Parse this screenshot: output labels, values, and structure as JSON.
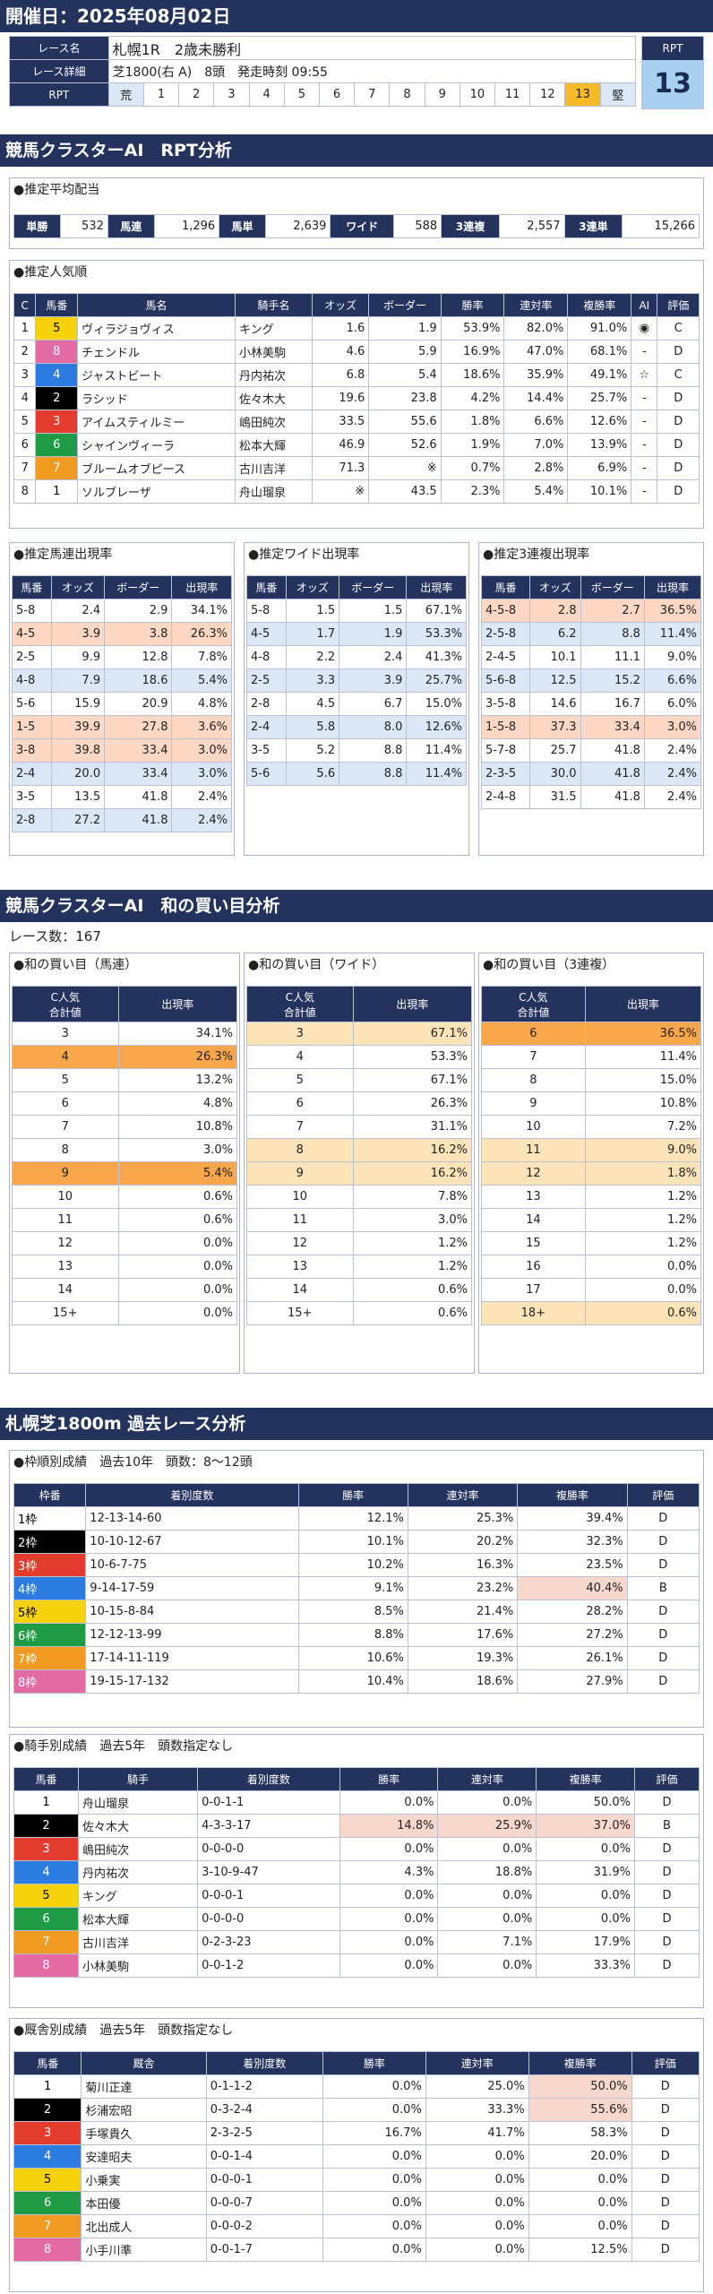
{
  "header": {
    "date": "開催日：2025年08月02日",
    "race_name_label": "レース名",
    "race_name": "札幌1R　2歳未勝利",
    "race_detail_label": "レース詳細",
    "race_detail": "芝1800(右 A)　8頭　発走時刻 09:55",
    "rpt_label": "RPT",
    "rpt_badge_label": "RPT",
    "rpt_value": "13",
    "rpt_scale": [
      "荒",
      "1",
      "2",
      "3",
      "4",
      "5",
      "6",
      "7",
      "8",
      "9",
      "10",
      "11",
      "12",
      "13",
      "堅"
    ],
    "rpt_selected": "13"
  },
  "sec1": {
    "title": "競馬クラスターAI　RPT分析"
  },
  "payout": {
    "title": "●推定平均配当",
    "items": [
      {
        "label": "単勝",
        "value": "532"
      },
      {
        "label": "馬連",
        "value": "1,296"
      },
      {
        "label": "馬単",
        "value": "2,639"
      },
      {
        "label": "ワイド",
        "value": "588"
      },
      {
        "label": "3連複",
        "value": "2,557"
      },
      {
        "label": "3連単",
        "value": "15,266"
      }
    ]
  },
  "pop": {
    "title": "●推定人気順",
    "headers": [
      "C",
      "馬番",
      "馬名",
      "騎手名",
      "オッズ",
      "ボーダー",
      "勝率",
      "連対率",
      "複勝率",
      "AI",
      "評価"
    ],
    "rows": [
      [
        "1",
        "5",
        "ヴィラジョヴィス",
        "キング",
        "1.6",
        "1.9",
        "53.9%",
        "82.0%",
        "91.0%",
        "◉",
        "C"
      ],
      [
        "2",
        "8",
        "チェンドル",
        "小林美駒",
        "4.6",
        "5.9",
        "16.9%",
        "47.0%",
        "68.1%",
        "-",
        "D"
      ],
      [
        "3",
        "4",
        "ジャストビート",
        "丹内祐次",
        "6.8",
        "5.4",
        "18.6%",
        "35.9%",
        "49.1%",
        "☆",
        "C"
      ],
      [
        "4",
        "2",
        "ラシッド",
        "佐々木大",
        "19.6",
        "23.8",
        "4.2%",
        "14.4%",
        "25.7%",
        "-",
        "D"
      ],
      [
        "5",
        "3",
        "アイムスティルミー",
        "嶋田純次",
        "33.5",
        "55.6",
        "1.8%",
        "6.6%",
        "12.6%",
        "-",
        "D"
      ],
      [
        "6",
        "6",
        "シャインヴィーラ",
        "松本大輝",
        "46.9",
        "52.6",
        "1.9%",
        "7.0%",
        "13.9%",
        "-",
        "D"
      ],
      [
        "7",
        "7",
        "ブルームオブピース",
        "古川吉洋",
        "71.3",
        "※",
        "0.7%",
        "2.8%",
        "6.9%",
        "-",
        "D"
      ],
      [
        "8",
        "1",
        "ソルブレーザ",
        "舟山瑠泉",
        "※",
        "43.5",
        "2.3%",
        "5.4%",
        "10.1%",
        "-",
        "D"
      ]
    ]
  },
  "umaren": {
    "title": "●推定馬連出現率",
    "headers": [
      "馬番",
      "オッズ",
      "ボーダー",
      "出現率"
    ],
    "rows": [
      [
        "5-8",
        "2.4",
        "2.9",
        "34.1%"
      ],
      [
        "4-5",
        "3.9",
        "3.8",
        "26.3%"
      ],
      [
        "2-5",
        "9.9",
        "12.8",
        "7.8%"
      ],
      [
        "4-8",
        "7.9",
        "18.6",
        "5.4%"
      ],
      [
        "5-6",
        "15.9",
        "20.9",
        "4.8%"
      ],
      [
        "1-5",
        "39.9",
        "27.8",
        "3.6%"
      ],
      [
        "3-8",
        "39.8",
        "33.4",
        "3.0%"
      ],
      [
        "2-4",
        "20.0",
        "33.4",
        "3.0%"
      ],
      [
        "3-5",
        "13.5",
        "41.8",
        "2.4%"
      ],
      [
        "2-8",
        "27.2",
        "41.8",
        "2.4%"
      ]
    ]
  },
  "wide": {
    "title": "●推定ワイド出現率",
    "headers": [
      "馬番",
      "オッズ",
      "ボーダー",
      "出現率"
    ],
    "rows": [
      [
        "5-8",
        "1.5",
        "1.5",
        "67.1%"
      ],
      [
        "4-5",
        "1.7",
        "1.9",
        "53.3%"
      ],
      [
        "4-8",
        "2.2",
        "2.4",
        "41.3%"
      ],
      [
        "2-5",
        "3.3",
        "3.9",
        "25.7%"
      ],
      [
        "2-8",
        "4.5",
        "6.7",
        "15.0%"
      ],
      [
        "2-4",
        "5.8",
        "8.0",
        "12.6%"
      ],
      [
        "3-5",
        "5.2",
        "8.8",
        "11.4%"
      ],
      [
        "5-6",
        "5.6",
        "8.8",
        "11.4%"
      ]
    ]
  },
  "sanfuku": {
    "title": "●推定3連複出現率",
    "headers": [
      "馬番",
      "オッズ",
      "ボーダー",
      "出現率"
    ],
    "rows": [
      [
        "4-5-8",
        "2.8",
        "2.7",
        "36.5%"
      ],
      [
        "2-5-8",
        "6.2",
        "8.8",
        "11.4%"
      ],
      [
        "2-4-5",
        "10.1",
        "11.1",
        "9.0%"
      ],
      [
        "5-6-8",
        "12.5",
        "15.2",
        "6.6%"
      ],
      [
        "3-5-8",
        "14.6",
        "16.7",
        "6.0%"
      ],
      [
        "1-5-8",
        "37.3",
        "33.4",
        "3.0%"
      ],
      [
        "5-7-8",
        "25.7",
        "41.8",
        "2.4%"
      ],
      [
        "2-3-5",
        "30.0",
        "41.8",
        "2.4%"
      ],
      [
        "2-4-8",
        "31.5",
        "41.8",
        "2.4%"
      ]
    ]
  },
  "sec2": {
    "title": "競馬クラスターAI　和の買い目分析",
    "race_count": "レース数：167"
  },
  "wa_umaren": {
    "title": "●和の買い目（馬連）",
    "headers": [
      "C人気\n合計値",
      "出現率"
    ],
    "rows": [
      [
        "3",
        "34.1%"
      ],
      [
        "4",
        "26.3%"
      ],
      [
        "5",
        "13.2%"
      ],
      [
        "6",
        "4.8%"
      ],
      [
        "7",
        "10.8%"
      ],
      [
        "8",
        "3.0%"
      ],
      [
        "9",
        "5.4%"
      ],
      [
        "10",
        "0.6%"
      ],
      [
        "11",
        "0.6%"
      ],
      [
        "12",
        "0.0%"
      ],
      [
        "13",
        "0.0%"
      ],
      [
        "14",
        "0.0%"
      ],
      [
        "15+",
        "0.0%"
      ]
    ]
  },
  "wa_wide": {
    "title": "●和の買い目（ワイド）",
    "headers": [
      "C人気\n合計値",
      "出現率"
    ],
    "rows": [
      [
        "3",
        "67.1%"
      ],
      [
        "4",
        "53.3%"
      ],
      [
        "5",
        "67.1%"
      ],
      [
        "6",
        "26.3%"
      ],
      [
        "7",
        "31.1%"
      ],
      [
        "8",
        "16.2%"
      ],
      [
        "9",
        "16.2%"
      ],
      [
        "10",
        "7.8%"
      ],
      [
        "11",
        "3.0%"
      ],
      [
        "12",
        "1.2%"
      ],
      [
        "13",
        "1.2%"
      ],
      [
        "14",
        "0.6%"
      ],
      [
        "15+",
        "0.6%"
      ]
    ]
  },
  "wa_sanfuku": {
    "title": "●和の買い目（3連複）",
    "headers": [
      "C人気\n合計値",
      "出現率"
    ],
    "rows": [
      [
        "6",
        "36.5%"
      ],
      [
        "7",
        "11.4%"
      ],
      [
        "8",
        "15.0%"
      ],
      [
        "9",
        "10.8%"
      ],
      [
        "10",
        "7.2%"
      ],
      [
        "11",
        "9.0%"
      ],
      [
        "12",
        "1.8%"
      ],
      [
        "13",
        "1.2%"
      ],
      [
        "14",
        "1.2%"
      ],
      [
        "15",
        "1.2%"
      ],
      [
        "16",
        "0.0%"
      ],
      [
        "17",
        "0.0%"
      ],
      [
        "18+",
        "0.6%"
      ]
    ]
  },
  "sec3": {
    "title": "札幌芝1800m 過去レース分析"
  },
  "waku": {
    "title": "●枠順別成績　過去10年　頭数：8～12頭",
    "headers": [
      "枠番",
      "着別度数",
      "勝率",
      "連対率",
      "複勝率",
      "評価"
    ],
    "rows": [
      [
        "1枠",
        "12-13-14-60",
        "12.1%",
        "25.3%",
        "39.4%",
        "D"
      ],
      [
        "2枠",
        "10-10-12-67",
        "10.1%",
        "20.2%",
        "32.3%",
        "D"
      ],
      [
        "3枠",
        "10-6-7-75",
        "10.2%",
        "16.3%",
        "23.5%",
        "D"
      ],
      [
        "4枠",
        "9-14-17-59",
        "9.1%",
        "23.2%",
        "40.4%",
        "B"
      ],
      [
        "5枠",
        "10-15-8-84",
        "8.5%",
        "21.4%",
        "28.2%",
        "D"
      ],
      [
        "6枠",
        "12-12-13-99",
        "8.8%",
        "17.6%",
        "27.2%",
        "D"
      ],
      [
        "7枠",
        "17-14-11-119",
        "10.6%",
        "19.3%",
        "26.1%",
        "D"
      ],
      [
        "8枠",
        "19-15-17-132",
        "10.4%",
        "18.6%",
        "27.9%",
        "D"
      ]
    ]
  },
  "jockey": {
    "title": "●騎手別成績　過去5年　頭数指定なし",
    "headers": [
      "馬番",
      "騎手",
      "着別度数",
      "勝率",
      "連対率",
      "複勝率",
      "評価"
    ],
    "rows": [
      [
        "1",
        "舟山瑠泉",
        "0-0-1-1",
        "0.0%",
        "0.0%",
        "50.0%",
        "D"
      ],
      [
        "2",
        "佐々木大",
        "4-3-3-17",
        "14.8%",
        "25.9%",
        "37.0%",
        "B"
      ],
      [
        "3",
        "嶋田純次",
        "0-0-0-0",
        "0.0%",
        "0.0%",
        "0.0%",
        "D"
      ],
      [
        "4",
        "丹内祐次",
        "3-10-9-47",
        "4.3%",
        "18.8%",
        "31.9%",
        "D"
      ],
      [
        "5",
        "キング",
        "0-0-0-1",
        "0.0%",
        "0.0%",
        "0.0%",
        "D"
      ],
      [
        "6",
        "松本大輝",
        "0-0-0-0",
        "0.0%",
        "0.0%",
        "0.0%",
        "D"
      ],
      [
        "7",
        "古川吉洋",
        "0-2-3-23",
        "0.0%",
        "7.1%",
        "17.9%",
        "D"
      ],
      [
        "8",
        "小林美駒",
        "0-0-1-2",
        "0.0%",
        "0.0%",
        "33.3%",
        "D"
      ]
    ]
  },
  "stable": {
    "title": "●厩舎別成績　過去5年　頭数指定なし",
    "headers": [
      "馬番",
      "厩舎",
      "着別度数",
      "勝率",
      "連対率",
      "複勝率",
      "評価"
    ],
    "rows": [
      [
        "1",
        "菊川正達",
        "0-1-1-2",
        "0.0%",
        "25.0%",
        "50.0%",
        "D"
      ],
      [
        "2",
        "杉浦宏昭",
        "0-3-2-4",
        "0.0%",
        "33.3%",
        "55.6%",
        "D"
      ],
      [
        "3",
        "手塚貴久",
        "2-3-2-5",
        "16.7%",
        "41.7%",
        "58.3%",
        "D"
      ],
      [
        "4",
        "安達昭夫",
        "0-0-1-4",
        "0.0%",
        "0.0%",
        "20.0%",
        "D"
      ],
      [
        "5",
        "小乗実",
        "0-0-0-1",
        "0.0%",
        "0.0%",
        "0.0%",
        "D"
      ],
      [
        "6",
        "本田優",
        "0-0-0-7",
        "0.0%",
        "0.0%",
        "0.0%",
        "D"
      ],
      [
        "7",
        "北出成人",
        "0-0-0-2",
        "0.0%",
        "0.0%",
        "0.0%",
        "D"
      ],
      [
        "8",
        "小手川準",
        "0-0-1-7",
        "0.0%",
        "0.0%",
        "12.5%",
        "D"
      ]
    ]
  }
}
